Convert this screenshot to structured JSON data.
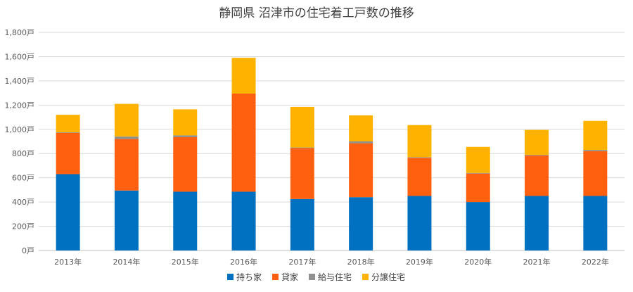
{
  "chart_data": {
    "type": "bar",
    "stacked": true,
    "title": "静岡県 沼津市の住宅着工戸数の推移",
    "xlabel": "",
    "ylabel": "",
    "ylim": [
      0,
      1800
    ],
    "y_ticks": [
      "0戸",
      "200戸",
      "400戸",
      "600戸",
      "800戸",
      "1,000戸",
      "1,200戸",
      "1,400戸",
      "1,600戸",
      "1,800戸"
    ],
    "y_tick_values": [
      0,
      200,
      400,
      600,
      800,
      1000,
      1200,
      1400,
      1600,
      1800
    ],
    "grid": true,
    "legend_position": "bottom",
    "categories": [
      "2013年",
      "2014年",
      "2015年",
      "2016年",
      "2017年",
      "2018年",
      "2019年",
      "2020年",
      "2021年",
      "2022年"
    ],
    "series": [
      {
        "name": "持ち家",
        "color": "#0070C0",
        "values": [
          630,
          495,
          485,
          485,
          425,
          440,
          450,
          400,
          450,
          450
        ]
      },
      {
        "name": "貸家",
        "color": "#FF6010",
        "values": [
          340,
          425,
          450,
          810,
          420,
          445,
          315,
          235,
          335,
          370
        ]
      },
      {
        "name": "給与住宅",
        "color": "#909090",
        "values": [
          5,
          20,
          15,
          0,
          5,
          15,
          5,
          5,
          5,
          10
        ]
      },
      {
        "name": "分譲住宅",
        "color": "#FFB300",
        "values": [
          145,
          270,
          215,
          295,
          335,
          215,
          265,
          215,
          205,
          240
        ]
      }
    ]
  }
}
